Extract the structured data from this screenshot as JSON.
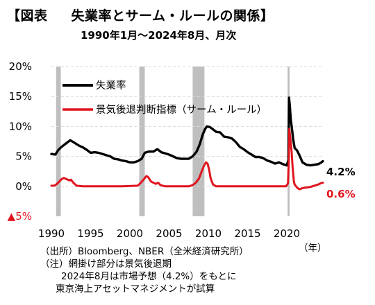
{
  "header": {
    "title_prefix": "【図表",
    "title_main": "失業率とサーム・ルールの関係】",
    "subtitle": "1990年1月～2024年8月、月次"
  },
  "notes": {
    "source": "（出所）Bloomberg、NBER（全米経済研究所）",
    "note1": "（注）網掛け部分は景気後退期",
    "note2": "2024年8月は市場予想（4.2%）をもとに",
    "note3": "東京海上アセットマネジメントが試算"
  },
  "colors": {
    "unemployment": "#000000",
    "sahm": "#e0141e",
    "recession": "#bfbfbf",
    "grid": "#d9d9d9",
    "negative_tick": "#e0141e"
  },
  "chart_data": {
    "type": "line",
    "xlabel": "（年）",
    "ylabel": "",
    "xlim": [
      1990.0,
      2024.6
    ],
    "ylim": [
      -5,
      20
    ],
    "x_ticks": [
      1990,
      1995,
      2000,
      2005,
      2010,
      2015,
      2020
    ],
    "x_tick_labels": [
      "1990",
      "1995",
      "2000",
      "2005",
      "2010",
      "2015",
      "2020"
    ],
    "y_ticks": [
      20,
      15,
      10,
      5,
      0,
      -5
    ],
    "y_tick_labels": [
      "20%",
      "15%",
      "10%",
      "5%",
      "0%",
      "▲5%"
    ],
    "grid": true,
    "legend": "top-left",
    "recessions": [
      {
        "start": 1990.6,
        "end": 1991.2
      },
      {
        "start": 2001.2,
        "end": 2001.9
      },
      {
        "start": 2008.0,
        "end": 2009.5
      },
      {
        "start": 2020.1,
        "end": 2020.35
      }
    ],
    "series": [
      {
        "name": "失業率",
        "end_label": "4.2%",
        "points": [
          [
            1990.0,
            5.4
          ],
          [
            1990.5,
            5.3
          ],
          [
            1990.9,
            6.1
          ],
          [
            1991.3,
            6.6
          ],
          [
            1991.8,
            7.1
          ],
          [
            1992.4,
            7.7
          ],
          [
            1992.9,
            7.3
          ],
          [
            1993.5,
            6.8
          ],
          [
            1994.0,
            6.5
          ],
          [
            1994.5,
            6.1
          ],
          [
            1995.0,
            5.6
          ],
          [
            1995.5,
            5.7
          ],
          [
            1996.0,
            5.6
          ],
          [
            1996.5,
            5.4
          ],
          [
            1997.0,
            5.2
          ],
          [
            1997.5,
            5.0
          ],
          [
            1998.0,
            4.6
          ],
          [
            1998.5,
            4.5
          ],
          [
            1999.0,
            4.3
          ],
          [
            1999.5,
            4.2
          ],
          [
            2000.0,
            4.0
          ],
          [
            2000.5,
            4.0
          ],
          [
            2001.0,
            4.2
          ],
          [
            2001.5,
            4.6
          ],
          [
            2001.9,
            5.6
          ],
          [
            2002.4,
            5.8
          ],
          [
            2003.0,
            5.8
          ],
          [
            2003.5,
            6.2
          ],
          [
            2004.0,
            5.7
          ],
          [
            2004.5,
            5.5
          ],
          [
            2005.0,
            5.3
          ],
          [
            2005.5,
            5.0
          ],
          [
            2006.0,
            4.7
          ],
          [
            2006.5,
            4.6
          ],
          [
            2007.0,
            4.6
          ],
          [
            2007.5,
            4.6
          ],
          [
            2008.0,
            5.0
          ],
          [
            2008.5,
            5.8
          ],
          [
            2008.9,
            7.0
          ],
          [
            2009.3,
            8.7
          ],
          [
            2009.6,
            9.6
          ],
          [
            2009.8,
            10.0
          ],
          [
            2010.2,
            9.9
          ],
          [
            2010.6,
            9.5
          ],
          [
            2011.0,
            9.1
          ],
          [
            2011.5,
            9.0
          ],
          [
            2012.0,
            8.3
          ],
          [
            2012.5,
            8.2
          ],
          [
            2013.0,
            8.0
          ],
          [
            2013.5,
            7.4
          ],
          [
            2014.0,
            6.6
          ],
          [
            2014.5,
            6.2
          ],
          [
            2015.0,
            5.7
          ],
          [
            2015.5,
            5.3
          ],
          [
            2016.0,
            4.9
          ],
          [
            2016.5,
            4.9
          ],
          [
            2017.0,
            4.7
          ],
          [
            2017.5,
            4.3
          ],
          [
            2018.0,
            4.1
          ],
          [
            2018.5,
            3.8
          ],
          [
            2019.0,
            4.0
          ],
          [
            2019.5,
            3.7
          ],
          [
            2020.0,
            3.5
          ],
          [
            2020.2,
            4.4
          ],
          [
            2020.28,
            14.8
          ],
          [
            2020.4,
            13.2
          ],
          [
            2020.5,
            11.1
          ],
          [
            2020.6,
            10.2
          ],
          [
            2020.8,
            7.9
          ],
          [
            2021.0,
            6.4
          ],
          [
            2021.3,
            6.0
          ],
          [
            2021.6,
            5.2
          ],
          [
            2022.0,
            4.0
          ],
          [
            2022.5,
            3.6
          ],
          [
            2023.0,
            3.5
          ],
          [
            2023.5,
            3.6
          ],
          [
            2024.0,
            3.7
          ],
          [
            2024.3,
            3.9
          ],
          [
            2024.6,
            4.2
          ]
        ]
      },
      {
        "name": "景気後退判断指標（サーム・ルール）",
        "end_label": "0.6%",
        "points": [
          [
            1990.0,
            0.1
          ],
          [
            1990.4,
            0.1
          ],
          [
            1990.7,
            0.4
          ],
          [
            1991.0,
            0.8
          ],
          [
            1991.3,
            1.2
          ],
          [
            1991.6,
            1.4
          ],
          [
            1991.9,
            1.2
          ],
          [
            1992.3,
            1.0
          ],
          [
            1992.5,
            1.1
          ],
          [
            1992.8,
            0.6
          ],
          [
            1993.2,
            0.1
          ],
          [
            1994.0,
            0.0
          ],
          [
            1996.0,
            0.0
          ],
          [
            1999.0,
            0.0
          ],
          [
            2001.0,
            0.1
          ],
          [
            2001.4,
            0.6
          ],
          [
            2001.8,
            1.2
          ],
          [
            2002.1,
            1.7
          ],
          [
            2002.3,
            1.6
          ],
          [
            2002.7,
            0.8
          ],
          [
            2003.3,
            0.4
          ],
          [
            2003.6,
            0.6
          ],
          [
            2003.9,
            0.2
          ],
          [
            2004.5,
            0.0
          ],
          [
            2007.5,
            0.0
          ],
          [
            2008.0,
            0.2
          ],
          [
            2008.4,
            0.6
          ],
          [
            2008.8,
            1.3
          ],
          [
            2009.1,
            2.3
          ],
          [
            2009.4,
            3.3
          ],
          [
            2009.7,
            4.0
          ],
          [
            2009.9,
            3.8
          ],
          [
            2010.1,
            2.8
          ],
          [
            2010.3,
            1.3
          ],
          [
            2010.6,
            0.3
          ],
          [
            2011.0,
            0.0
          ],
          [
            2019.9,
            0.0
          ],
          [
            2020.15,
            0.5
          ],
          [
            2020.25,
            4.0
          ],
          [
            2020.32,
            9.6
          ],
          [
            2020.45,
            8.0
          ],
          [
            2020.6,
            6.0
          ],
          [
            2020.75,
            3.0
          ],
          [
            2020.9,
            0.8
          ],
          [
            2021.0,
            0.3
          ],
          [
            2021.3,
            -0.2
          ],
          [
            2021.6,
            -0.5
          ],
          [
            2022.0,
            -0.3
          ],
          [
            2022.5,
            -0.2
          ],
          [
            2023.0,
            -0.1
          ],
          [
            2023.5,
            0.1
          ],
          [
            2024.0,
            0.3
          ],
          [
            2024.3,
            0.5
          ],
          [
            2024.6,
            0.6
          ]
        ]
      }
    ]
  }
}
